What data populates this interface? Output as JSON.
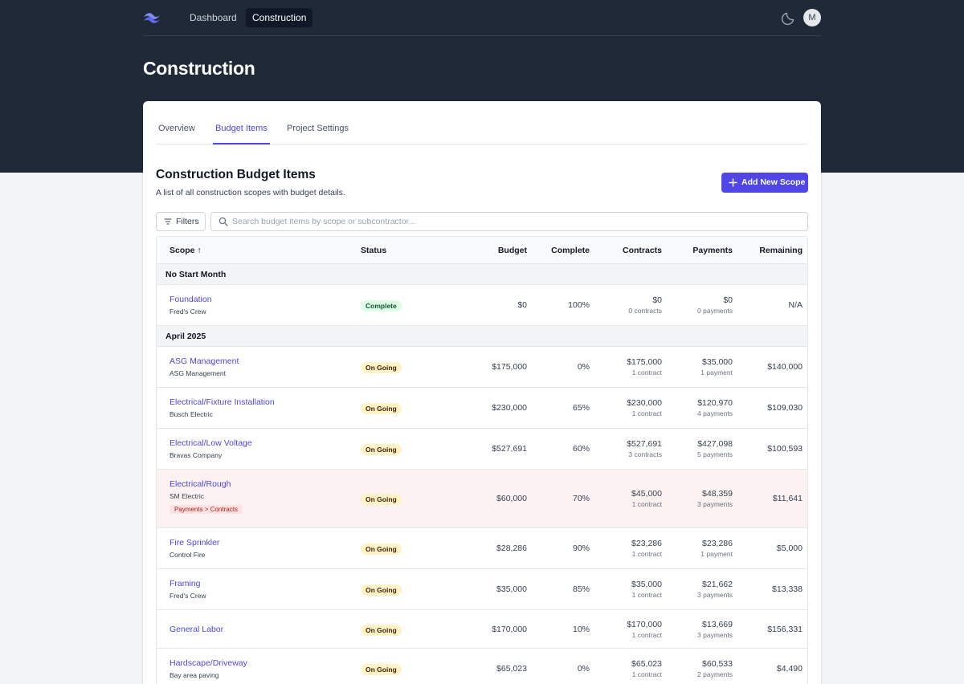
{
  "nav": {
    "links": [
      "Dashboard",
      "Construction"
    ],
    "avatar_initial": "M"
  },
  "page_title": "Construction",
  "tabs": [
    "Overview",
    "Budget Items",
    "Project Settings"
  ],
  "section": {
    "title": "Construction Budget Items",
    "subtitle": "A list of all construction scopes with budget details.",
    "add_button": "Add New Scope"
  },
  "filters_label": "Filters",
  "search": {
    "placeholder": "Search budget items by scope or subcontractor..."
  },
  "columns": {
    "scope": "Scope ↑",
    "status": "Status",
    "budget": "Budget",
    "complete": "Complete",
    "contracts": "Contracts",
    "payments": "Payments",
    "remaining": "Remaining"
  },
  "groups": [
    {
      "label": "No Start Month",
      "rows": [
        {
          "scope": "Foundation",
          "sub": "Fred's Crew",
          "status": "Complete",
          "budget": "$0",
          "complete": "100%",
          "contracts": "$0",
          "contracts_sub": "0 contracts",
          "payments": "$0",
          "payments_sub": "0 payments",
          "remaining": "N/A"
        }
      ]
    },
    {
      "label": "April 2025",
      "rows": [
        {
          "scope": "ASG Management",
          "sub": "ASG Management",
          "status": "On Going",
          "budget": "$175,000",
          "complete": "0%",
          "contracts": "$175,000",
          "contracts_sub": "1 contract",
          "payments": "$35,000",
          "payments_sub": "1 payment",
          "remaining": "$140,000"
        },
        {
          "scope": "Electrical/Fixture Installation",
          "sub": "Busch Electric",
          "status": "On Going",
          "budget": "$230,000",
          "complete": "65%",
          "contracts": "$230,000",
          "contracts_sub": "1 contract",
          "payments": "$120,970",
          "payments_sub": "4 payments",
          "remaining": "$109,030"
        },
        {
          "scope": "Electrical/Low Voltage",
          "sub": "Bravas Company",
          "status": "On Going",
          "budget": "$527,691",
          "complete": "60%",
          "contracts": "$527,691",
          "contracts_sub": "3 contracts",
          "payments": "$427,098",
          "payments_sub": "5 payments",
          "remaining": "$100,593"
        },
        {
          "scope": "Electrical/Rough",
          "sub": "SM Electric",
          "warning": "Payments > Contracts",
          "status": "On Going",
          "budget": "$60,000",
          "complete": "70%",
          "contracts": "$45,000",
          "contracts_sub": "1 contract",
          "payments": "$48,359",
          "payments_sub": "3 payments",
          "remaining": "$11,641"
        },
        {
          "scope": "Fire Sprinkler",
          "sub": "Control Fire",
          "status": "On Going",
          "budget": "$28,286",
          "complete": "90%",
          "contracts": "$23,286",
          "contracts_sub": "1 contract",
          "payments": "$23,286",
          "payments_sub": "1 payment",
          "remaining": "$5,000"
        },
        {
          "scope": "Framing",
          "sub": "Fred's Crew",
          "status": "On Going",
          "budget": "$35,000",
          "complete": "85%",
          "contracts": "$35,000",
          "contracts_sub": "1 contract",
          "payments": "$21,662",
          "payments_sub": "3 payments",
          "remaining": "$13,338"
        },
        {
          "scope": "General Labor",
          "sub": "",
          "status": "On Going",
          "budget": "$170,000",
          "complete": "10%",
          "contracts": "$170,000",
          "contracts_sub": "1 contract",
          "payments": "$13,669",
          "payments_sub": "3 payments",
          "remaining": "$156,331"
        },
        {
          "scope": "Hardscape/Driveway",
          "sub": "Bay area paving",
          "status": "On Going",
          "budget": "$65,023",
          "complete": "0%",
          "contracts": "$65,023",
          "contracts_sub": "1 contract",
          "payments": "$60,533",
          "payments_sub": "2 payments",
          "remaining": "$4,490"
        }
      ]
    }
  ]
}
